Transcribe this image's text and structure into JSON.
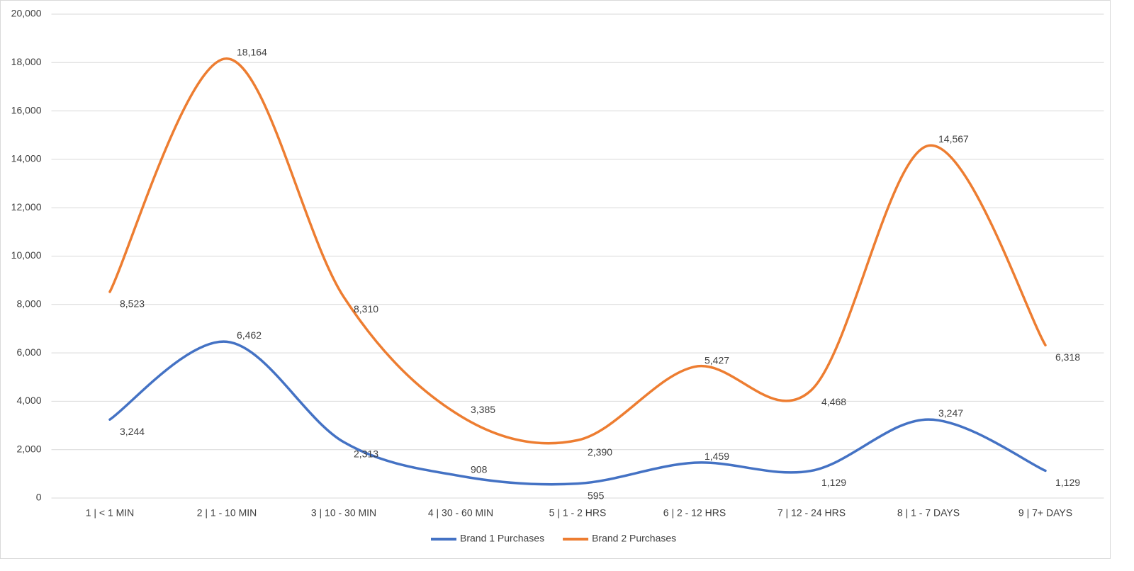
{
  "chart_data": {
    "type": "line",
    "categories": [
      "1 | < 1 MIN",
      "2 | 1 - 10 MIN",
      "3 | 10 - 30 MIN",
      "4 | 30 - 60 MIN",
      "5 | 1 - 2 HRS",
      "6 | 2 - 12 HRS",
      "7 | 12 - 24 HRS",
      "8 | 1 - 7 DAYS",
      "9 | 7+ DAYS"
    ],
    "series": [
      {
        "name": "Brand 1 Purchases",
        "color": "#4472c4",
        "values": [
          3244,
          6462,
          2313,
          908,
          595,
          1459,
          1129,
          3247,
          1129
        ],
        "value_labels": [
          "3,244",
          "6,462",
          "2,313",
          "908",
          "595",
          "1,459",
          "1,129",
          "3,247",
          "1,129"
        ]
      },
      {
        "name": "Brand 2 Purchases",
        "color": "#ed7d31",
        "values": [
          8523,
          18164,
          8310,
          3385,
          2390,
          5427,
          4468,
          14567,
          6318
        ],
        "value_labels": [
          "8,523",
          "18,164",
          "8,310",
          "3,385",
          "2,390",
          "5,427",
          "4,468",
          "14,567",
          "6,318"
        ]
      }
    ],
    "ylim": [
      0,
      20000
    ],
    "yticks": [
      0,
      {
        "value": 2000,
        "label": "2,000"
      },
      {
        "value": 4000,
        "label": "4,000"
      },
      {
        "value": 6000,
        "label": "6,000"
      },
      {
        "value": 8000,
        "label": "8,000"
      },
      {
        "value": 10000,
        "label": "10,000"
      },
      {
        "value": 12000,
        "label": "12,000"
      },
      {
        "value": 14000,
        "label": "14,000"
      },
      {
        "value": 16000,
        "label": "16,000"
      },
      {
        "value": 18000,
        "label": "18,000"
      },
      {
        "value": 20000,
        "label": "20,000"
      }
    ],
    "grid": true,
    "smooth": true,
    "legend": "bottom"
  }
}
